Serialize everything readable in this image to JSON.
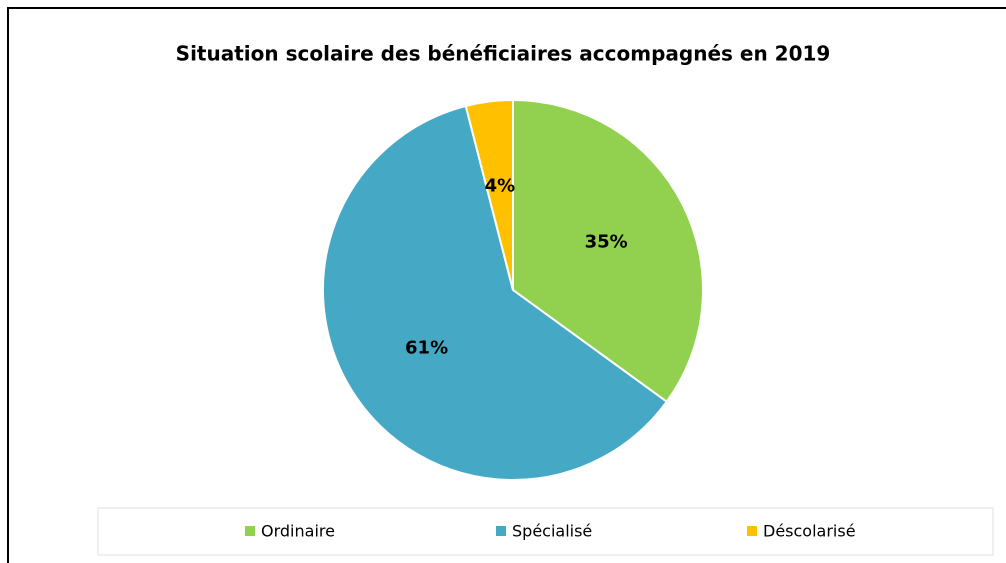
{
  "chart_data": {
    "type": "pie",
    "title": "Situation scolaire des bénéficiaires accompagnés en 2019",
    "categories": [
      "Ordinaire",
      "Spécialisé",
      "Déscolarisé"
    ],
    "values": [
      35,
      61,
      4
    ],
    "value_labels": [
      "35%",
      "61%",
      "4%"
    ],
    "colors": [
      "#92d050",
      "#45a9c6",
      "#ffc000"
    ],
    "legend": "bottom"
  }
}
